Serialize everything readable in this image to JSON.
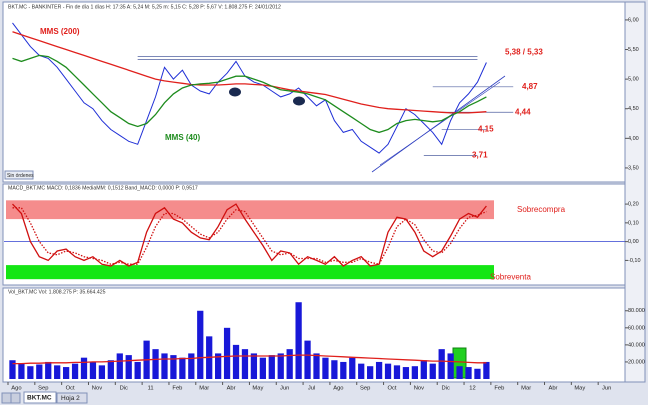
{
  "status": "Sin órdenes",
  "tabs": [
    "BKT.MC",
    "Hoja 2"
  ],
  "chart_data": [
    {
      "type": "line",
      "title": "BKT.MC - BANKINTER - Fin de día 1 días  H: 17:35  A: 5,24  M: 5,25  m: 5,15  C: 5,28  P: 5,67  V: 1.808.275  F: 24/01/2012",
      "ylim": [
        3.33,
        6.1
      ],
      "yticks": [
        {
          "value": 6,
          "label": "6,00"
        },
        {
          "value": 5.5,
          "label": "5,50"
        },
        {
          "value": 5,
          "label": "5,00"
        },
        {
          "value": 4.5,
          "label": "4,50"
        },
        {
          "value": 4,
          "label": "4,00"
        },
        {
          "value": 3.5,
          "label": "3,50"
        }
      ],
      "series": [
        {
          "color": "#1f2fd6",
          "values": [
            5.95,
            5.75,
            5.55,
            5.4,
            5.35,
            5.2,
            5,
            4.8,
            4.6,
            4.5,
            4.3,
            4.15,
            4.05,
            3.95,
            3.9,
            4.3,
            4.7,
            5.2,
            5,
            5.15,
            4.9,
            4.8,
            4.75,
            4.95,
            5.1,
            5.3,
            5.05,
            4.95,
            4.9,
            4.8,
            4.7,
            4.75,
            4.85,
            4.7,
            4.55,
            4.65,
            4.3,
            4.1,
            4.15,
            3.95,
            3.85,
            3.75,
            3.9,
            4.2,
            4.5,
            4.4,
            4.25,
            4.1,
            3.9,
            4.3,
            4.6,
            4.75,
            4.95,
            5.28,
            null,
            null,
            null,
            null,
            null,
            null,
            null,
            null,
            null,
            null,
            null,
            null,
            null,
            null,
            null
          ]
        },
        {
          "name": "MMS (200)",
          "color": "#e0201c",
          "values": [
            5.8,
            5.75,
            5.7,
            5.65,
            5.6,
            5.55,
            5.5,
            5.45,
            5.4,
            5.35,
            5.3,
            5.25,
            5.2,
            5.15,
            5.1,
            5.05,
            5,
            4.97,
            4.95,
            4.93,
            4.91,
            4.9,
            4.9,
            4.9,
            4.91,
            4.92,
            4.92,
            4.91,
            4.9,
            4.88,
            4.85,
            4.82,
            4.8,
            4.78,
            4.76,
            4.74,
            4.7,
            4.66,
            4.62,
            4.58,
            4.55,
            4.52,
            4.5,
            4.49,
            4.48,
            4.47,
            4.46,
            4.45,
            4.44,
            4.43,
            4.43,
            4.43,
            4.44,
            4.45,
            null,
            null,
            null,
            null,
            null,
            null,
            null,
            null,
            null,
            null,
            null,
            null,
            null,
            null,
            null
          ]
        },
        {
          "name": "MMS (40)",
          "color": "#1e8c1e",
          "values": [
            5.35,
            5.3,
            5.35,
            5.4,
            5.38,
            5.3,
            5.2,
            5.05,
            4.9,
            4.75,
            4.6,
            4.45,
            4.35,
            4.25,
            4.2,
            4.25,
            4.4,
            4.6,
            4.75,
            4.85,
            4.9,
            4.92,
            4.93,
            4.95,
            5,
            5.05,
            5.05,
            5,
            4.95,
            4.88,
            4.82,
            4.8,
            4.78,
            4.75,
            4.7,
            4.65,
            4.55,
            4.45,
            4.35,
            4.25,
            4.15,
            4.1,
            4.15,
            4.25,
            4.3,
            4.32,
            4.3,
            4.28,
            4.3,
            4.38,
            4.45,
            4.55,
            4.62,
            4.7,
            null,
            null,
            null,
            null,
            null,
            null,
            null,
            null,
            null,
            null,
            null,
            null,
            null,
            null,
            null
          ]
        }
      ],
      "levels": [
        {
          "value": 5.38,
          "label": "5,38 / 5,33"
        },
        {
          "value": 5.33
        },
        {
          "value": 4.87,
          "label": "4,87"
        },
        {
          "value": 4.44,
          "label": "4,44"
        },
        {
          "value": 4.15,
          "label": "4,15"
        },
        {
          "value": 3.71,
          "label": "3,71"
        }
      ],
      "level_color": "#e0201c"
    },
    {
      "type": "line",
      "title": "MACD_BKT.MC  MACD: 0,1836  MediaMM: 0,1512  Band_MACD: 0,0000  P: 0,9517",
      "ylim": [
        -0.215,
        0.275
      ],
      "yticks": [
        {
          "value": 0.2,
          "label": "0,20"
        },
        {
          "value": 0.1,
          "label": "0,10"
        },
        {
          "value": 0,
          "label": "0,00"
        },
        {
          "value": -0.1,
          "label": "-0,10"
        }
      ],
      "zero_line": true,
      "bands": [
        {
          "label": "Sobrecompra",
          "from": 0.12,
          "to": 0.22,
          "color": "#f58c8c"
        },
        {
          "label": "Sobreventa",
          "from": -0.2,
          "to": -0.125,
          "color": "#14e614"
        }
      ],
      "series": [
        {
          "color": "#d01010",
          "dash": "solid",
          "values": [
            0.2,
            0.15,
            0,
            -0.08,
            -0.1,
            -0.05,
            -0.04,
            -0.08,
            -0.1,
            -0.08,
            -0.12,
            -0.13,
            -0.1,
            -0.13,
            -0.11,
            0.05,
            0.15,
            0.18,
            0.12,
            0.1,
            0.05,
            0.02,
            0.01,
            0.08,
            0.17,
            0.2,
            0.12,
            0.05,
            -0.02,
            -0.1,
            -0.05,
            -0.06,
            -0.12,
            -0.08,
            -0.1,
            -0.12,
            -0.08,
            -0.13,
            -0.1,
            -0.08,
            -0.13,
            -0.12,
            0.05,
            0.13,
            0.12,
            0.05,
            -0.05,
            -0.08,
            -0.05,
            0.03,
            0.12,
            0.15,
            0.13,
            0.19,
            null,
            null,
            null,
            null,
            null,
            null,
            null,
            null,
            null,
            null,
            null,
            null,
            null,
            null,
            null
          ]
        },
        {
          "color": "#d01010",
          "dash": "dotted",
          "values": [
            0.18,
            0.18,
            0.1,
            0,
            -0.06,
            -0.07,
            -0.05,
            -0.06,
            -0.08,
            -0.09,
            -0.1,
            -0.12,
            -0.11,
            -0.12,
            -0.12,
            -0.03,
            0.08,
            0.15,
            0.15,
            0.12,
            0.08,
            0.04,
            0.02,
            0.05,
            0.12,
            0.17,
            0.16,
            0.09,
            0.02,
            -0.05,
            -0.07,
            -0.06,
            -0.09,
            -0.09,
            -0.09,
            -0.11,
            -0.1,
            -0.11,
            -0.11,
            -0.09,
            -0.11,
            -0.12,
            -0.03,
            0.08,
            0.12,
            0.09,
            0.01,
            -0.05,
            -0.06,
            -0.01,
            0.07,
            0.13,
            0.14,
            0.16,
            null,
            null,
            null,
            null,
            null,
            null,
            null,
            null,
            null,
            null,
            null,
            null,
            null,
            null,
            null
          ]
        }
      ]
    },
    {
      "type": "bar",
      "title": "Vol_BKT.MC  Vol: 1.808.275  P: 35.664.425",
      "categories": [
        "Ago",
        null,
        null,
        "Sep",
        null,
        null,
        "Oct",
        null,
        null,
        "Nov",
        null,
        null,
        "Dic",
        null,
        null,
        "11",
        null,
        null,
        "Feb",
        null,
        null,
        "Mar",
        null,
        null,
        "Abr",
        null,
        null,
        "May",
        null,
        null,
        "Jun",
        null,
        null,
        "Jul",
        null,
        null,
        "Ago",
        null,
        null,
        "Sep",
        null,
        null,
        "Oct",
        null,
        null,
        "Nov",
        null,
        null,
        "Dic",
        null,
        null,
        "12",
        null,
        null,
        "Feb",
        null,
        null,
        "Mar",
        null,
        null,
        "Abr",
        null,
        null,
        "May",
        null,
        null,
        "Jun",
        null,
        null
      ],
      "ylim": [
        0,
        102000
      ],
      "yticks": [
        {
          "value": 80000,
          "label": "80.000"
        },
        {
          "value": 60000,
          "label": "60.000"
        },
        {
          "value": 40000,
          "label": "40.000"
        },
        {
          "value": 20000,
          "label": "20.000"
        }
      ],
      "series": [
        {
          "type": "bar",
          "color": "#1818d8",
          "values": [
            22000,
            18000,
            15000,
            17000,
            20000,
            16000,
            14000,
            18000,
            25000,
            20000,
            16000,
            22000,
            30000,
            28000,
            20000,
            45000,
            35000,
            30000,
            28000,
            25000,
            30000,
            80000,
            50000,
            30000,
            60000,
            40000,
            35000,
            30000,
            25000,
            28000,
            30000,
            35000,
            90000,
            45000,
            30000,
            25000,
            22000,
            20000,
            25000,
            18000,
            15000,
            20000,
            18000,
            16000,
            14000,
            15000,
            22000,
            18000,
            35000,
            30000,
            15000,
            14000,
            12000,
            20000,
            null,
            null,
            null,
            null,
            null,
            null,
            null,
            null,
            null,
            null,
            null,
            null,
            null,
            null,
            null
          ]
        },
        {
          "type": "line",
          "color": "#e0201c",
          "values": [
            18000,
            18000,
            18500,
            18500,
            19000,
            19000,
            19000,
            19500,
            19500,
            20000,
            20000,
            20500,
            21000,
            21500,
            22000,
            22500,
            23000,
            23500,
            23500,
            24000,
            24000,
            25000,
            25500,
            26000,
            26500,
            27000,
            27000,
            27000,
            27000,
            27000,
            27000,
            27500,
            28000,
            28000,
            27500,
            27000,
            26500,
            26000,
            25500,
            25000,
            24500,
            24000,
            23500,
            23000,
            22500,
            22000,
            21500,
            21000,
            21000,
            20500,
            20000,
            19500,
            19000,
            19000,
            null,
            null,
            null,
            null,
            null,
            null,
            null,
            null,
            null,
            null,
            null,
            null,
            null,
            null,
            null
          ]
        }
      ]
    }
  ]
}
